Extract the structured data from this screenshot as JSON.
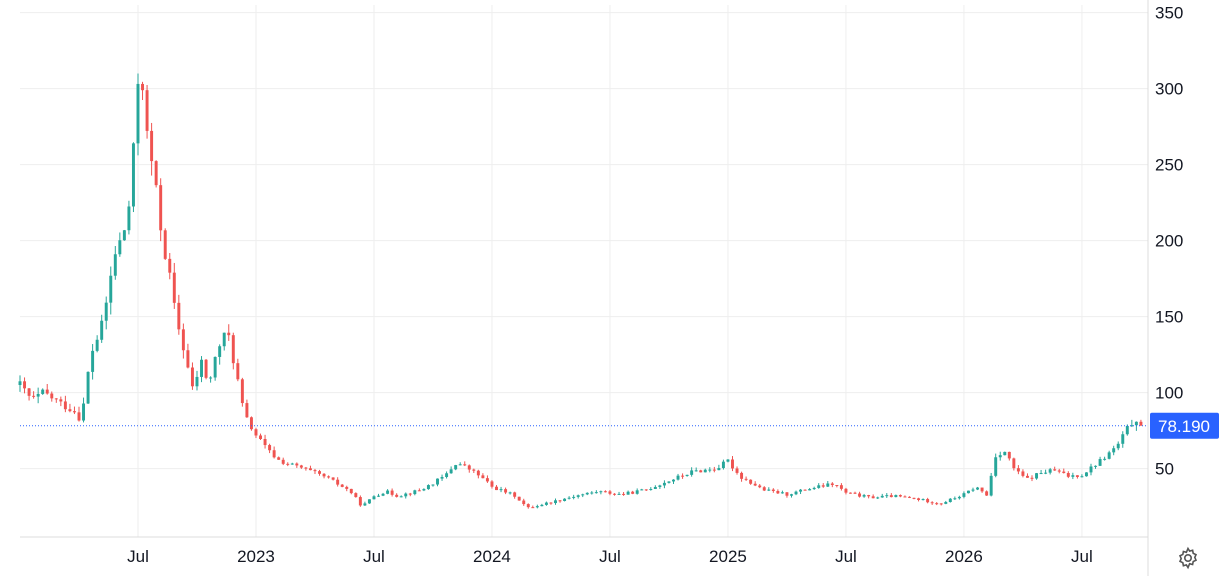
{
  "chart_data": {
    "type": "candlestick",
    "y_ticks": [
      50,
      100,
      150,
      200,
      250,
      300,
      350
    ],
    "ylim": [
      5,
      355
    ],
    "x_tick_labels": [
      {
        "label": "Jul",
        "t": 2022.5
      },
      {
        "label": "2023",
        "t": 2023.0
      },
      {
        "label": "Jul",
        "t": 2023.5
      },
      {
        "label": "2024",
        "t": 2024.0
      },
      {
        "label": "Jul",
        "t": 2024.5
      },
      {
        "label": "2025",
        "t": 2025.0
      },
      {
        "label": "Jul",
        "t": 2025.5
      },
      {
        "label": "2026",
        "t": 2026.0
      },
      {
        "label": "Jul",
        "t": 2026.5
      }
    ],
    "xlim": [
      2022.0,
      2026.78
    ],
    "last_price": 78.19,
    "last_price_label": "78.190",
    "grid": true,
    "colors": {
      "up": "#26a69a",
      "down": "#ef5350",
      "grid": "#eeeeee",
      "price_line": "#2962ff",
      "label_bg": "#2962ff"
    },
    "anchors": [
      [
        2022.0,
        105
      ],
      [
        2022.05,
        95
      ],
      [
        2022.1,
        100
      ],
      [
        2022.17,
        93
      ],
      [
        2022.23,
        88
      ],
      [
        2022.26,
        82
      ],
      [
        2022.3,
        125
      ],
      [
        2022.35,
        145
      ],
      [
        2022.4,
        190
      ],
      [
        2022.44,
        205
      ],
      [
        2022.47,
        230
      ],
      [
        2022.49,
        280
      ],
      [
        2022.51,
        330
      ],
      [
        2022.53,
        275
      ],
      [
        2022.56,
        250
      ],
      [
        2022.6,
        205
      ],
      [
        2022.63,
        180
      ],
      [
        2022.66,
        150
      ],
      [
        2022.7,
        125
      ],
      [
        2022.73,
        102
      ],
      [
        2022.77,
        120
      ],
      [
        2022.8,
        105
      ],
      [
        2022.84,
        130
      ],
      [
        2022.88,
        140
      ],
      [
        2022.92,
        110
      ],
      [
        2022.95,
        85
      ],
      [
        2023.0,
        72
      ],
      [
        2023.05,
        62
      ],
      [
        2023.1,
        55
      ],
      [
        2023.2,
        50
      ],
      [
        2023.3,
        44
      ],
      [
        2023.4,
        35
      ],
      [
        2023.45,
        25
      ],
      [
        2023.5,
        32
      ],
      [
        2023.55,
        35
      ],
      [
        2023.6,
        32
      ],
      [
        2023.7,
        36
      ],
      [
        2023.8,
        45
      ],
      [
        2023.85,
        54
      ],
      [
        2023.9,
        50
      ],
      [
        2023.95,
        45
      ],
      [
        2024.0,
        38
      ],
      [
        2024.1,
        32
      ],
      [
        2024.15,
        24
      ],
      [
        2024.25,
        28
      ],
      [
        2024.35,
        32
      ],
      [
        2024.45,
        35
      ],
      [
        2024.55,
        33
      ],
      [
        2024.65,
        36
      ],
      [
        2024.75,
        42
      ],
      [
        2024.85,
        48
      ],
      [
        2024.95,
        50
      ],
      [
        2025.0,
        55
      ],
      [
        2025.05,
        45
      ],
      [
        2025.15,
        36
      ],
      [
        2025.25,
        33
      ],
      [
        2025.35,
        37
      ],
      [
        2025.45,
        40
      ],
      [
        2025.5,
        34
      ],
      [
        2025.6,
        31
      ],
      [
        2025.7,
        32
      ],
      [
        2025.8,
        30
      ],
      [
        2025.9,
        27
      ],
      [
        2026.0,
        33
      ],
      [
        2026.05,
        38
      ],
      [
        2026.1,
        32
      ],
      [
        2026.13,
        58
      ],
      [
        2026.17,
        62
      ],
      [
        2026.22,
        48
      ],
      [
        2026.27,
        43
      ],
      [
        2026.32,
        47
      ],
      [
        2026.38,
        49
      ],
      [
        2026.44,
        45
      ],
      [
        2026.5,
        46
      ],
      [
        2026.55,
        52
      ],
      [
        2026.6,
        58
      ],
      [
        2026.65,
        65
      ],
      [
        2026.7,
        78
      ],
      [
        2026.73,
        83
      ],
      [
        2026.76,
        78.19
      ]
    ]
  }
}
